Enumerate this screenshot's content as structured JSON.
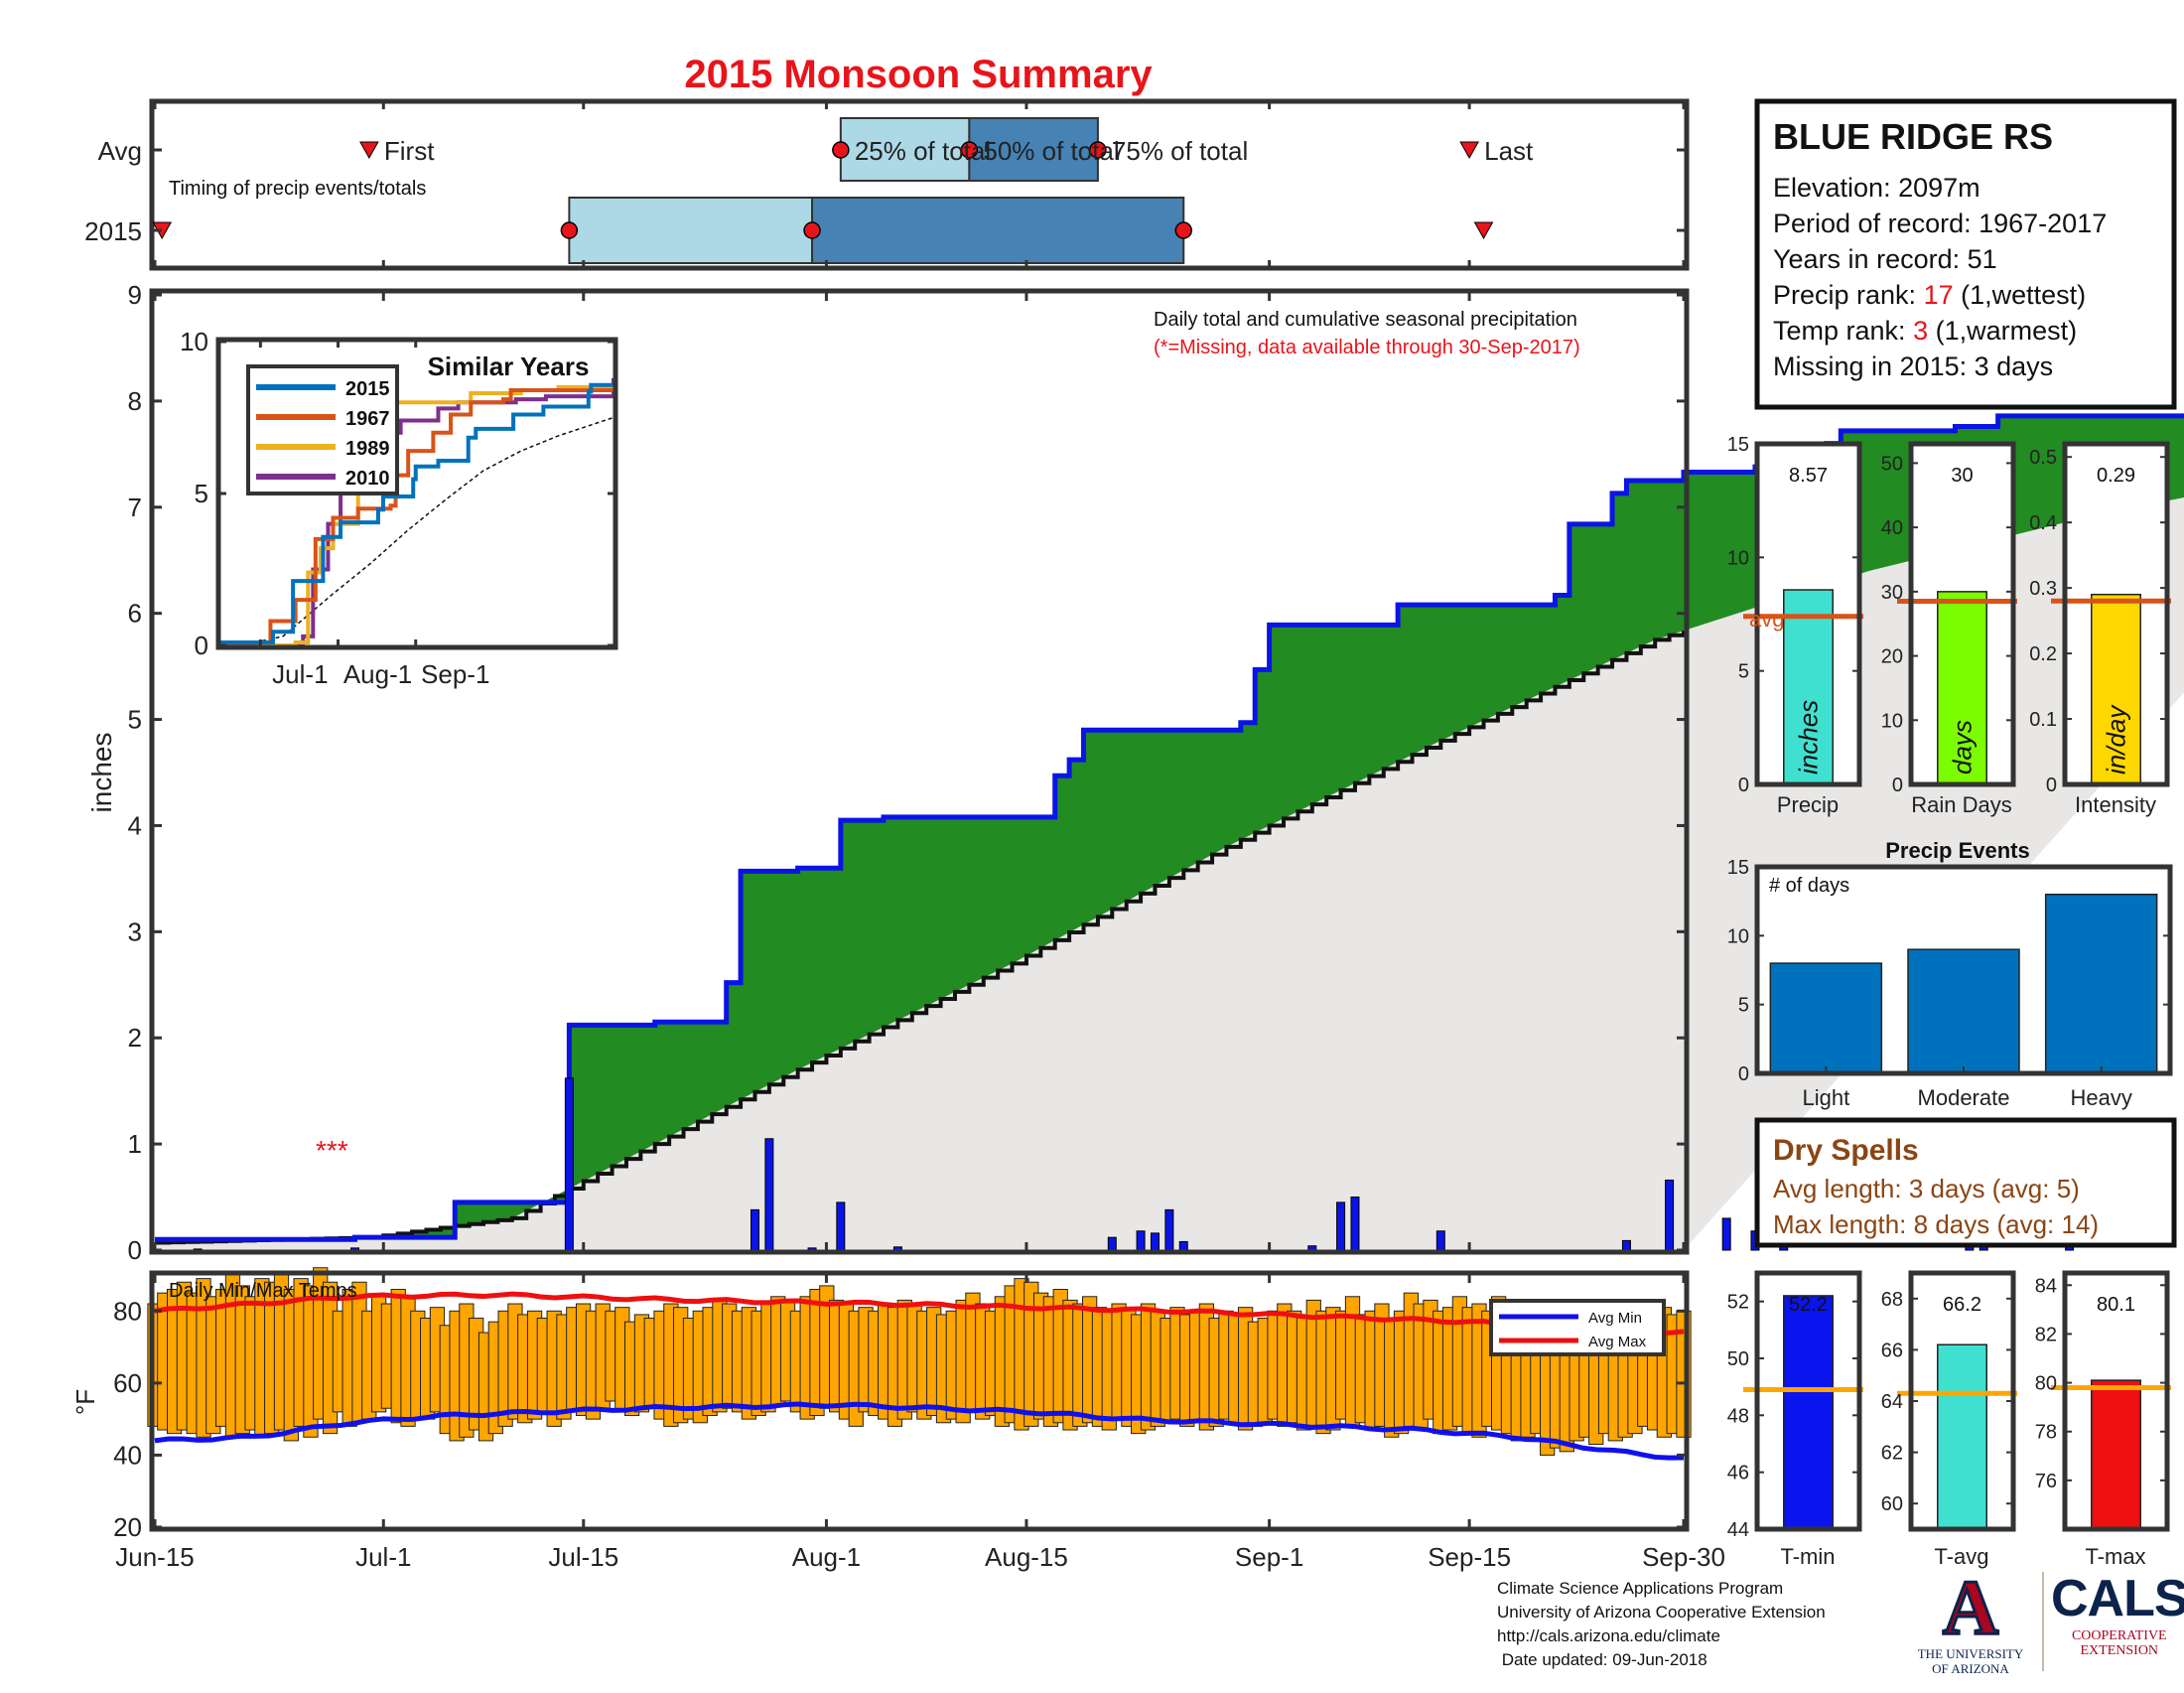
{
  "title": "2015 Monsoon Summary",
  "timing": {
    "row_avg": "Avg",
    "row_year": "2015",
    "subtitle": "Timing of precip events/totals",
    "first": "First",
    "pct25": "25% of total",
    "pct50": "50% of total",
    "pct75": "75% of total",
    "last": "Last",
    "avg": {
      "first_day": 15,
      "p25": 48,
      "p50": 57,
      "p75": 66,
      "last_day": 92
    },
    "year": {
      "first_day": 0.5,
      "p25": 29,
      "p50": 46,
      "p75": 72,
      "last_day": 93
    }
  },
  "station": {
    "name": "BLUE RIDGE RS",
    "elevation": "Elevation: 2097m",
    "period": "Period of record: 1967-2017",
    "years": "Years in record: 51",
    "precip_rank_label": "Precip rank: ",
    "precip_rank": "17",
    "precip_rank_note": " (1,wettest)",
    "temp_rank_label": "Temp rank: ",
    "temp_rank": "3",
    "temp_rank_note": " (1,warmest)",
    "missing": "Missing in 2015: 3 days"
  },
  "main_chart": {
    "note1": "Daily total and cumulative seasonal precipitation",
    "note2": "(*=Missing, data available through 30-Sep-2017)",
    "missing_mark": "***",
    "ylabel": "inches",
    "yticks": [
      "0",
      "1",
      "2",
      "3",
      "4",
      "5",
      "6",
      "7",
      "8",
      "9"
    ],
    "xticks": [
      "Jun-15",
      "Jul-1",
      "Jul-15",
      "Aug-1",
      "Aug-15",
      "Sep-1",
      "Sep-15",
      "Sep-30"
    ]
  },
  "inset": {
    "title": "Similar Years",
    "legend": [
      "2015",
      "1967",
      "1989",
      "2010"
    ],
    "yticks": [
      "0",
      "5",
      "10"
    ],
    "xticks": [
      "Jul-1",
      "Aug-1",
      "Sep-1"
    ]
  },
  "summary_bars": {
    "precip_value": "8.57",
    "raindays_value": "30",
    "intensity_value": "0.29",
    "precip_label": "Precip",
    "raindays_label": "Rain Days",
    "intensity_label": "Intensity",
    "precip_unit": "inches",
    "raindays_unit": "days",
    "intensity_unit": "in/day",
    "avg_label": "avg",
    "precip_yticks": [
      "0",
      "5",
      "10",
      "15"
    ],
    "raindays_yticks": [
      "0",
      "10",
      "20",
      "30",
      "40",
      "50"
    ],
    "intensity_yticks": [
      "0",
      "0.1",
      "0.2",
      "0.3",
      "0.4",
      "0.5"
    ]
  },
  "events": {
    "title": "Precip Events",
    "note": "# of days",
    "categories": [
      "Light",
      "Moderate",
      "Heavy"
    ],
    "yticks": [
      "0",
      "5",
      "10",
      "15"
    ]
  },
  "dry_spells": {
    "title": "Dry Spells",
    "avg_length": "Avg length: 3 days (avg: 5)",
    "max_length": "Max length: 8 days (avg: 14)"
  },
  "temps": {
    "title": "Daily Min/Max Temps",
    "ylabel": "°F",
    "yticks": [
      "20",
      "40",
      "60",
      "80"
    ],
    "legend_min": "Avg Min",
    "legend_max": "Avg Max",
    "tmin_value": "52.2",
    "tavg_value": "66.2",
    "tmax_value": "80.1",
    "tmin_label": "T-min",
    "tavg_label": "T-avg",
    "tmax_label": "T-max",
    "tmin_yticks": [
      "44",
      "46",
      "48",
      "50",
      "52"
    ],
    "tavg_yticks": [
      "60",
      "62",
      "64",
      "66",
      "68"
    ],
    "tmax_yticks": [
      "76",
      "78",
      "80",
      "82",
      "84"
    ]
  },
  "footer": {
    "line1": "Climate Science Applications Program",
    "line2": "University of Arizona Cooperative Extension",
    "line3": "http://cals.arizona.edu/climate",
    "line4": " Date updated: 09-Jun-2018"
  },
  "logos": {
    "ua_mark": "A",
    "ua_line1": "THE UNIVERSITY",
    "ua_line2": "OF ARIZONA",
    "cals": "CALS",
    "cals_line1": "COOPERATIVE",
    "cals_line2": "EXTENSION"
  },
  "chart_data": [
    {
      "type": "area",
      "name": "cumulative",
      "x_unit": "days since Jun-15",
      "ylim": [
        0,
        9
      ],
      "observed_steps": [
        [
          0,
          0.1
        ],
        [
          14,
          0.12
        ],
        [
          21,
          0.45
        ],
        [
          29,
          2.12
        ],
        [
          35,
          2.15
        ],
        [
          40,
          2.52
        ],
        [
          41,
          3.57
        ],
        [
          45,
          3.6
        ],
        [
          48,
          4.05
        ],
        [
          51,
          4.08
        ],
        [
          63,
          4.47
        ],
        [
          64,
          4.62
        ],
        [
          65,
          4.9
        ],
        [
          76,
          4.97
        ],
        [
          77,
          5.47
        ],
        [
          78,
          5.89
        ],
        [
          87,
          6.08
        ],
        [
          98,
          6.17
        ],
        [
          99,
          6.84
        ],
        [
          102,
          7.13
        ],
        [
          103,
          7.25
        ],
        [
          107,
          7.33
        ],
        [
          112,
          7.38
        ],
        [
          117,
          7.6
        ],
        [
          118,
          7.72
        ],
        [
          126,
          7.76
        ],
        [
          129,
          7.86
        ],
        [
          146,
          7.92
        ],
        [
          147,
          8.35
        ],
        [
          148,
          8.57
        ],
        [
          157,
          8.57
        ]
      ],
      "average_curve": [
        [
          0,
          0.07
        ],
        [
          15,
          0.12
        ],
        [
          25,
          0.3
        ],
        [
          35,
          1.0
        ],
        [
          45,
          1.7
        ],
        [
          60,
          2.7
        ],
        [
          75,
          3.8
        ],
        [
          90,
          4.8
        ],
        [
          105,
          5.75
        ],
        [
          120,
          6.4
        ],
        [
          135,
          6.9
        ],
        [
          157,
          7.5
        ]
      ],
      "daily_precip": [
        [
          3,
          0.01
        ],
        [
          14,
          0.02
        ],
        [
          29,
          1.62
        ],
        [
          42,
          0.38
        ],
        [
          43,
          1.05
        ],
        [
          46,
          0.02
        ],
        [
          48,
          0.45
        ],
        [
          52,
          0.03
        ],
        [
          67,
          0.12
        ],
        [
          69,
          0.18
        ],
        [
          70,
          0.16
        ],
        [
          71,
          0.38
        ],
        [
          72,
          0.08
        ],
        [
          81,
          0.04
        ],
        [
          83,
          0.45
        ],
        [
          84,
          0.5
        ],
        [
          90,
          0.18
        ],
        [
          103,
          0.09
        ],
        [
          106,
          0.66
        ],
        [
          110,
          0.3
        ],
        [
          112,
          0.18
        ],
        [
          114,
          0.1
        ],
        [
          127,
          0.3
        ],
        [
          128,
          0.08
        ],
        [
          134,
          0.1
        ],
        [
          146,
          0.25
        ],
        [
          147,
          0.44
        ]
      ]
    },
    {
      "type": "line",
      "name": "Similar Years",
      "x_unit": "days since Jun-15",
      "ylim": [
        0,
        10
      ],
      "series": [
        {
          "name": "2015",
          "color": "#0072bd",
          "points": [
            [
              0,
              0.1
            ],
            [
              21,
              0.45
            ],
            [
              29,
              2.12
            ],
            [
              41,
              3.57
            ],
            [
              48,
              4.05
            ],
            [
              63,
              4.47
            ],
            [
              65,
              4.9
            ],
            [
              77,
              5.47
            ],
            [
              78,
              5.89
            ],
            [
              87,
              6.08
            ],
            [
              99,
              6.84
            ],
            [
              102,
              7.13
            ],
            [
              117,
              7.6
            ],
            [
              129,
              7.86
            ],
            [
              147,
              8.35
            ],
            [
              148,
              8.57
            ],
            [
              157,
              8.57
            ]
          ]
        },
        {
          "name": "1967",
          "color": "#d95319",
          "points": [
            [
              0,
              0.0
            ],
            [
              15,
              0.1
            ],
            [
              20,
              0.8
            ],
            [
              30,
              1.5
            ],
            [
              38,
              3.5
            ],
            [
              45,
              4.2
            ],
            [
              55,
              4.5
            ],
            [
              68,
              4.6
            ],
            [
              70,
              5.6
            ],
            [
              75,
              6.4
            ],
            [
              85,
              7.0
            ],
            [
              92,
              7.6
            ],
            [
              100,
              8.0
            ],
            [
              113,
              8.1
            ],
            [
              116,
              8.4
            ],
            [
              157,
              8.4
            ]
          ]
        },
        {
          "name": "1989",
          "color": "#edb120",
          "points": [
            [
              0,
              0.0
            ],
            [
              30,
              0.1
            ],
            [
              35,
              2.4
            ],
            [
              40,
              3.2
            ],
            [
              45,
              4.0
            ],
            [
              55,
              5.5
            ],
            [
              60,
              6.5
            ],
            [
              63,
              7.2
            ],
            [
              70,
              8.0
            ],
            [
              100,
              8.3
            ],
            [
              120,
              8.4
            ],
            [
              135,
              8.5
            ],
            [
              145,
              8.5
            ],
            [
              157,
              8.5
            ]
          ]
        },
        {
          "name": "2010",
          "color": "#7e2f8e",
          "points": [
            [
              0,
              0.0
            ],
            [
              25,
              0.0
            ],
            [
              33,
              0.3
            ],
            [
              37,
              2.5
            ],
            [
              43,
              4.0
            ],
            [
              48,
              5.2
            ],
            [
              55,
              6.1
            ],
            [
              60,
              6.4
            ],
            [
              68,
              7.0
            ],
            [
              72,
              7.4
            ],
            [
              80,
              7.4
            ],
            [
              87,
              7.8
            ],
            [
              95,
              8.0
            ],
            [
              110,
              8.0
            ],
            [
              118,
              8.1
            ],
            [
              130,
              8.2
            ],
            [
              157,
              8.8
            ]
          ]
        }
      ]
    },
    {
      "type": "bar",
      "name": "Precip",
      "ylim": [
        0,
        15
      ],
      "values": [
        8.57
      ],
      "average": 7.4
    },
    {
      "type": "bar",
      "name": "Rain Days",
      "ylim": [
        0,
        53
      ],
      "values": [
        30
      ],
      "average": 28.5
    },
    {
      "type": "bar",
      "name": "Intensity",
      "ylim": [
        0,
        0.52
      ],
      "values": [
        0.29
      ],
      "average": 0.28
    },
    {
      "type": "bar",
      "title": "Precip Events",
      "categories": [
        "Light",
        "Moderate",
        "Heavy"
      ],
      "values": [
        8,
        9,
        13
      ],
      "ylim": [
        0,
        15
      ]
    },
    {
      "type": "bar",
      "name": "Daily Min/Max Temps",
      "x_unit": "days since Jun-15",
      "ylim": [
        20,
        90
      ],
      "tmin": [
        48,
        47,
        46,
        47,
        46,
        45,
        46,
        48,
        45,
        46,
        47,
        45,
        46,
        47,
        44,
        48,
        45,
        50,
        46,
        52,
        48,
        49,
        50,
        52,
        53,
        49,
        48,
        50,
        50,
        52,
        46,
        44,
        45,
        47,
        44,
        46,
        48,
        50,
        49,
        50,
        52,
        48,
        50,
        52,
        51,
        50,
        53,
        55,
        52,
        51,
        52,
        53,
        50,
        48,
        49,
        50,
        49,
        51,
        52,
        53,
        52,
        50,
        51,
        52,
        54,
        55,
        52,
        50,
        51,
        53,
        52,
        50,
        48,
        52,
        51,
        50,
        48,
        50,
        52,
        50,
        51,
        49,
        50,
        49,
        52,
        50,
        51,
        48,
        49,
        47,
        48,
        50,
        48,
        49,
        47,
        48,
        49,
        48,
        47,
        50,
        48,
        46,
        47,
        48,
        49,
        50,
        48,
        49,
        47,
        48,
        50,
        49,
        47,
        48,
        49,
        50,
        48,
        49,
        47,
        48,
        46,
        47,
        50,
        48,
        49,
        47,
        48,
        45,
        46,
        48,
        47,
        50,
        46,
        47,
        48,
        46,
        45,
        48,
        47,
        46,
        44,
        45,
        46,
        40,
        42,
        41,
        44,
        45,
        43,
        46,
        44,
        45,
        46,
        48,
        47,
        45,
        46,
        45
      ],
      "tmax": [
        82,
        85,
        86,
        88,
        85,
        89,
        84,
        86,
        90,
        87,
        84,
        89,
        88,
        91,
        86,
        89,
        87,
        92,
        88,
        80,
        86,
        88,
        80,
        84,
        82,
        86,
        84,
        80,
        78,
        81,
        76,
        80,
        82,
        78,
        74,
        77,
        80,
        82,
        79,
        80,
        78,
        80,
        79,
        81,
        82,
        80,
        82,
        80,
        81,
        77,
        79,
        78,
        80,
        82,
        81,
        78,
        80,
        81,
        83,
        82,
        80,
        81,
        80,
        82,
        84,
        83,
        80,
        84,
        86,
        87,
        83,
        82,
        80,
        81,
        80,
        82,
        81,
        83,
        82,
        80,
        81,
        79,
        80,
        83,
        85,
        82,
        80,
        84,
        87,
        89,
        88,
        85,
        84,
        86,
        83,
        82,
        84,
        81,
        80,
        82,
        81,
        79,
        82,
        80,
        78,
        81,
        79,
        80,
        82,
        78,
        80,
        79,
        81,
        77,
        78,
        80,
        82,
        80,
        79,
        83,
        80,
        81,
        80,
        84,
        79,
        80,
        82,
        78,
        80,
        85,
        82,
        83,
        80,
        81,
        84,
        81,
        82,
        80,
        84,
        79,
        78,
        81,
        82,
        79,
        78,
        80,
        81,
        80,
        81,
        82,
        80,
        79,
        81,
        77,
        78,
        81,
        79,
        80
      ],
      "avg_min": [
        [
          0,
          44
        ],
        [
          10,
          45
        ],
        [
          20,
          49
        ],
        [
          30,
          51
        ],
        [
          50,
          53
        ],
        [
          70,
          54
        ],
        [
          90,
          52
        ],
        [
          100,
          50
        ],
        [
          110,
          49
        ],
        [
          120,
          48
        ],
        [
          130,
          47
        ],
        [
          140,
          45
        ],
        [
          150,
          41
        ],
        [
          157,
          39
        ]
      ],
      "avg_max": [
        [
          0,
          80
        ],
        [
          10,
          82
        ],
        [
          20,
          84
        ],
        [
          35,
          84.5
        ],
        [
          55,
          83
        ],
        [
          75,
          82
        ],
        [
          90,
          81
        ],
        [
          105,
          80
        ],
        [
          120,
          78.5
        ],
        [
          135,
          77
        ],
        [
          150,
          74.5
        ],
        [
          157,
          74
        ]
      ]
    },
    {
      "type": "bar",
      "name": "T-min",
      "ylim": [
        44,
        53
      ],
      "values": [
        52.2
      ],
      "average": 48.9
    },
    {
      "type": "bar",
      "name": "T-avg",
      "ylim": [
        59,
        69
      ],
      "values": [
        66.2
      ],
      "average": 64.3
    },
    {
      "type": "bar",
      "name": "T-max",
      "ylim": [
        74,
        84.5
      ],
      "values": [
        80.1
      ],
      "average": 79.8
    }
  ]
}
